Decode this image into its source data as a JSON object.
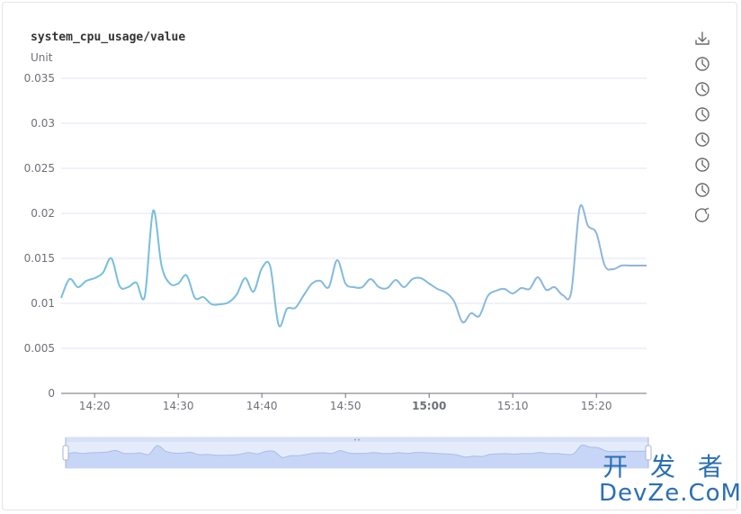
{
  "chart_data": {
    "type": "line",
    "title": "system_cpu_usage/value",
    "ylabel": "Unit",
    "xlabel": "",
    "ylim": [
      0,
      0.035
    ],
    "y_ticks": [
      "0",
      "0.005",
      "0.01",
      "0.015",
      "0.02",
      "0.025",
      "0.03",
      "0.035"
    ],
    "x_range": [
      "14:16",
      "15:26"
    ],
    "x_ticks": [
      {
        "label": "14:20",
        "bold": false
      },
      {
        "label": "14:30",
        "bold": false
      },
      {
        "label": "14:40",
        "bold": false
      },
      {
        "label": "14:50",
        "bold": false
      },
      {
        "label": "15:00",
        "bold": true
      },
      {
        "label": "15:10",
        "bold": false
      },
      {
        "label": "15:20",
        "bold": false
      }
    ],
    "grid": true,
    "series": [
      {
        "color": "#7fbce8",
        "x": [
          "14:16",
          "14:17",
          "14:18",
          "14:19",
          "14:20",
          "14:21",
          "14:22",
          "14:23",
          "14:24",
          "14:25",
          "14:26",
          "14:27",
          "14:28",
          "14:29",
          "14:30",
          "14:31",
          "14:32",
          "14:33",
          "14:34",
          "14:35",
          "14:36",
          "14:37",
          "14:38",
          "14:39",
          "14:40",
          "14:41",
          "14:42",
          "14:43",
          "14:44",
          "14:45",
          "14:46",
          "14:47",
          "14:48",
          "14:49",
          "14:50",
          "14:51",
          "14:52",
          "14:53",
          "14:54",
          "14:55",
          "14:56",
          "14:57",
          "14:58",
          "14:59",
          "15:00",
          "15:01",
          "15:02",
          "15:03",
          "15:04",
          "15:05",
          "15:06",
          "15:07",
          "15:08",
          "15:09",
          "15:10",
          "15:11",
          "15:12",
          "15:13",
          "15:14",
          "15:15",
          "15:16",
          "15:17",
          "15:18",
          "15:19",
          "15:20",
          "15:21",
          "15:22",
          "15:23",
          "15:24",
          "15:25",
          "15:26"
        ],
        "values": [
          0.0106,
          0.0127,
          0.0118,
          0.0125,
          0.0128,
          0.0134,
          0.015,
          0.0119,
          0.0118,
          0.0123,
          0.0108,
          0.0203,
          0.0142,
          0.0122,
          0.0122,
          0.0131,
          0.0106,
          0.0107,
          0.0099,
          0.0099,
          0.0101,
          0.011,
          0.0128,
          0.0113,
          0.0139,
          0.0141,
          0.0076,
          0.0094,
          0.0095,
          0.0109,
          0.0122,
          0.0125,
          0.0118,
          0.0148,
          0.0122,
          0.0118,
          0.0118,
          0.0127,
          0.0118,
          0.0117,
          0.0126,
          0.0118,
          0.0127,
          0.0128,
          0.0122,
          0.0116,
          0.0112,
          0.0102,
          0.0079,
          0.0089,
          0.0086,
          0.0108,
          0.0114,
          0.0116,
          0.0111,
          0.0117,
          0.0116,
          0.0129,
          0.0115,
          0.0118,
          0.0109,
          0.0113,
          0.0206,
          0.0186,
          0.0178,
          0.0142,
          0.0138,
          0.0142,
          0.0142,
          0.0142,
          0.0142
        ]
      }
    ]
  },
  "toolbox": {
    "icons": [
      "download-icon",
      "clock-icon",
      "clock-icon",
      "clock-icon",
      "clock-icon",
      "clock-icon",
      "clock-icon",
      "refresh-icon"
    ]
  },
  "data_zoom": {
    "handle_grip": "••"
  },
  "watermark": {
    "line1": "开 发 者",
    "line2": "DevZe.CoM"
  }
}
